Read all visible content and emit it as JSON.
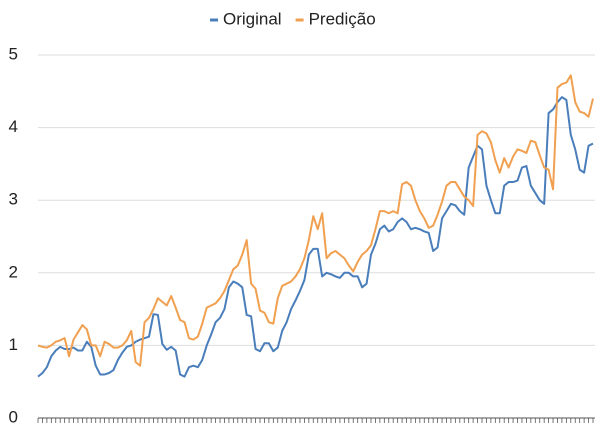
{
  "chart_data": {
    "type": "line",
    "categories": [
      null,
      null,
      null,
      null,
      null,
      null,
      null,
      null,
      null,
      null,
      null,
      null,
      null,
      null,
      null,
      null,
      null,
      null,
      null,
      null,
      null,
      null,
      null,
      null,
      null,
      null,
      null,
      null,
      null,
      null,
      null,
      null,
      null,
      null,
      null,
      null,
      null,
      null,
      null,
      null,
      null,
      null,
      null,
      null,
      null,
      null,
      null,
      null,
      null,
      null,
      null,
      null,
      null,
      null,
      null,
      null,
      null,
      null,
      null,
      null,
      null,
      null,
      null,
      null,
      null,
      null,
      null,
      null,
      null,
      null,
      null,
      null,
      null,
      null,
      null,
      null,
      null,
      null,
      null,
      null,
      null,
      null,
      null,
      null,
      null,
      null,
      null,
      null,
      null,
      null,
      null,
      null,
      null,
      null,
      null,
      null,
      null,
      null,
      null,
      null,
      null,
      null,
      null,
      null,
      null,
      null,
      null,
      null,
      null,
      null,
      null,
      null,
      null,
      null,
      null,
      null,
      null,
      null,
      null,
      null,
      null,
      null,
      null,
      null,
      null,
      null
    ],
    "series": [
      {
        "name": "Original",
        "color": "#4a7ebb",
        "values": [
          0.57,
          0.62,
          0.7,
          0.85,
          0.93,
          0.98,
          0.95,
          0.95,
          0.97,
          0.93,
          0.93,
          1.05,
          0.98,
          0.72,
          0.6,
          0.6,
          0.62,
          0.66,
          0.8,
          0.9,
          0.98,
          1.0,
          1.05,
          1.08,
          1.1,
          1.12,
          1.43,
          1.42,
          1.02,
          0.94,
          0.98,
          0.93,
          0.6,
          0.57,
          0.7,
          0.72,
          0.7,
          0.8,
          1.0,
          1.15,
          1.32,
          1.38,
          1.5,
          1.8,
          1.88,
          1.85,
          1.8,
          1.42,
          1.4,
          0.95,
          0.92,
          1.03,
          1.03,
          0.92,
          0.97,
          1.2,
          1.32,
          1.5,
          1.62,
          1.75,
          1.9,
          2.25,
          2.33,
          2.33,
          1.95,
          2.0,
          1.98,
          1.95,
          1.93,
          2.0,
          2.0,
          1.95,
          1.95,
          1.8,
          1.85,
          2.25,
          2.4,
          2.6,
          2.65,
          2.57,
          2.6,
          2.7,
          2.75,
          2.7,
          2.6,
          2.62,
          2.6,
          2.57,
          2.55,
          2.3,
          2.35,
          2.75,
          2.85,
          2.95,
          2.93,
          2.85,
          2.8,
          3.45,
          3.6,
          3.75,
          3.7,
          3.2,
          3.0,
          2.82,
          2.82,
          3.2,
          3.25,
          3.25,
          3.27,
          3.45,
          3.47,
          3.2,
          3.1,
          3.0,
          2.95,
          4.2,
          4.25,
          4.35,
          4.42,
          4.38,
          3.9,
          3.7,
          3.42,
          3.38,
          3.75,
          3.78
        ]
      },
      {
        "name": "Predição",
        "color": "#f0a050",
        "values": [
          1.0,
          0.98,
          0.97,
          1.0,
          1.05,
          1.07,
          1.1,
          0.85,
          1.08,
          1.18,
          1.28,
          1.22,
          1.0,
          1.0,
          0.85,
          1.05,
          1.02,
          0.97,
          0.97,
          1.0,
          1.07,
          1.2,
          0.77,
          0.72,
          1.32,
          1.38,
          1.5,
          1.65,
          1.6,
          1.55,
          1.68,
          1.52,
          1.35,
          1.32,
          1.1,
          1.08,
          1.12,
          1.3,
          1.52,
          1.55,
          1.58,
          1.65,
          1.75,
          1.9,
          2.05,
          2.1,
          2.25,
          2.45,
          1.85,
          1.78,
          1.48,
          1.45,
          1.32,
          1.3,
          1.65,
          1.82,
          1.85,
          1.88,
          1.95,
          2.05,
          2.2,
          2.45,
          2.78,
          2.6,
          2.82,
          2.2,
          2.27,
          2.3,
          2.25,
          2.2,
          2.1,
          2.02,
          2.15,
          2.25,
          2.3,
          2.38,
          2.6,
          2.85,
          2.85,
          2.82,
          2.85,
          2.82,
          3.22,
          3.25,
          3.2,
          3.0,
          2.85,
          2.75,
          2.62,
          2.65,
          2.8,
          2.98,
          3.2,
          3.25,
          3.25,
          3.15,
          3.05,
          3.0,
          2.92,
          3.9,
          3.95,
          3.92,
          3.8,
          3.55,
          3.38,
          3.58,
          3.45,
          3.6,
          3.7,
          3.68,
          3.65,
          3.82,
          3.8,
          3.62,
          3.45,
          3.42,
          3.15,
          4.55,
          4.6,
          4.62,
          4.72,
          4.35,
          4.22,
          4.2,
          4.15,
          4.4
        ]
      }
    ],
    "ylim": [
      0,
      5
    ],
    "yticks": [
      0,
      1,
      2,
      3,
      4,
      5
    ],
    "grid": true,
    "legend": "top"
  }
}
